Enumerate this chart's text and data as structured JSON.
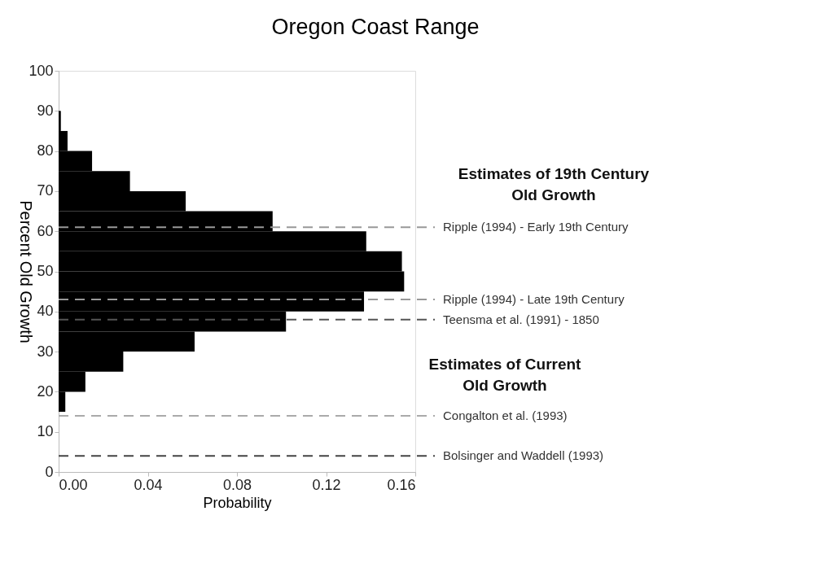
{
  "chart_data": {
    "type": "histogram",
    "orientation": "horizontal",
    "title": "Oregon Coast Range",
    "xlabel": "Probability",
    "ylabel": "Percent Old Growth",
    "bins": [
      15,
      20,
      25,
      30,
      35,
      40,
      45,
      50,
      55,
      60,
      65,
      70,
      75,
      80,
      85,
      90
    ],
    "values": [
      0.003,
      0.012,
      0.029,
      0.061,
      0.102,
      0.137,
      0.155,
      0.154,
      0.138,
      0.096,
      0.057,
      0.032,
      0.015,
      0.004,
      0.001
    ],
    "color": "#000000",
    "xlim": [
      0,
      0.16
    ],
    "xticks": [
      {
        "value": 0,
        "label": "0.00"
      },
      0.04,
      0.08,
      0.12,
      0.16
    ],
    "ylim": [
      0,
      100
    ],
    "yticks": [
      0,
      10,
      20,
      30,
      40,
      50,
      60,
      70,
      80,
      90,
      100
    ],
    "grid": false,
    "ref_lines": [
      {
        "axis": "y",
        "value": 61,
        "label": "Ripple (1994) - Early 19th Century",
        "color": "#999999",
        "line_style": "dashed"
      },
      {
        "axis": "y",
        "value": 43,
        "label": "Ripple (1994) - Late 19th Century",
        "color": "#999999",
        "line_style": "dashed"
      },
      {
        "axis": "y",
        "value": 38,
        "label": "Teensma et al. (1991) - 1850",
        "color": "#555555",
        "line_style": "dashed"
      },
      {
        "axis": "y",
        "value": 14,
        "label": "Congalton et al. (1993)",
        "color": "#aaaaaa",
        "line_style": "dashed"
      },
      {
        "axis": "y",
        "value": 4,
        "label": "Bolsinger and Waddell (1993)",
        "color": "#444444",
        "line_style": "dashed"
      }
    ],
    "annotations": [
      "Estimates of 19th Century\nOld Growth",
      "Estimates of Current\nOld Growth"
    ]
  }
}
